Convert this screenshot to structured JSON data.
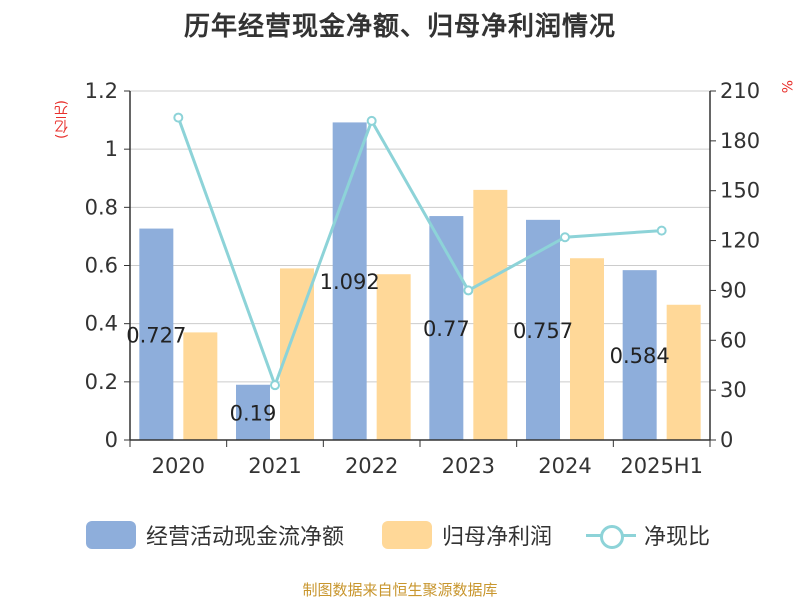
{
  "title": "历年经营现金净额、归母净利润情况",
  "left_unit": "(亿元)",
  "right_unit": "%",
  "source": "制图数据来自恒生聚源数据库",
  "colors": {
    "operating_cash": "#8eaedb",
    "net_profit": "#ffd898",
    "ratio": "#8dd3d8",
    "axis": "#333333",
    "grid": "#cccccc",
    "unit": "#e8302c",
    "source": "#c8962e"
  },
  "chart_data": {
    "type": "bar",
    "title": "历年经营现金净额、归母净利润情况",
    "categories": [
      "2020",
      "2021",
      "2022",
      "2023",
      "2024",
      "2025H1"
    ],
    "series": [
      {
        "name": "经营活动现金流净额",
        "type": "bar",
        "axis": "left",
        "values": [
          0.727,
          0.19,
          1.092,
          0.77,
          0.757,
          0.584
        ],
        "labels": [
          "0.727",
          "0.19",
          "1.092",
          "0.77",
          "0.757",
          "0.584"
        ]
      },
      {
        "name": "归母净利润",
        "type": "bar",
        "axis": "left",
        "values": [
          0.37,
          0.59,
          0.57,
          0.86,
          0.625,
          0.465
        ]
      },
      {
        "name": "净现比",
        "type": "line",
        "axis": "right",
        "values": [
          194,
          33,
          192,
          90,
          122,
          126
        ]
      }
    ],
    "ylabel": "(亿元)",
    "ylabel_right": "%",
    "ylim": [
      0,
      1.2
    ],
    "ylim_right": [
      0,
      210
    ],
    "yticks": [
      "0",
      "0.2",
      "0.4",
      "0.6",
      "0.8",
      "1",
      "1.2"
    ],
    "yticks_right": [
      "0",
      "30",
      "60",
      "90",
      "120",
      "150",
      "180",
      "210"
    ],
    "grid": true,
    "legend_position": "bottom"
  },
  "legend": [
    {
      "label": "经营活动现金流净额",
      "icon": "bar-swatch"
    },
    {
      "label": "归母净利润",
      "icon": "bar-swatch"
    },
    {
      "label": "净现比",
      "icon": "line-circle-marker"
    }
  ]
}
